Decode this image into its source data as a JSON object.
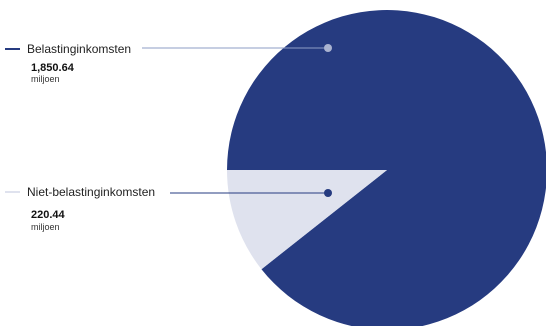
{
  "chart_data": {
    "type": "pie",
    "series": [
      {
        "name": "Belastinginkomsten",
        "value": 1850.64,
        "value_label": "1,850.64",
        "unit": "miljoen",
        "color": "#263b80"
      },
      {
        "name": "Niet-belastinginkomsten",
        "value": 220.44,
        "value_label": "220.44",
        "unit": "miljoen",
        "color": "#dfe2ee"
      }
    ],
    "legend_placement": "left"
  }
}
